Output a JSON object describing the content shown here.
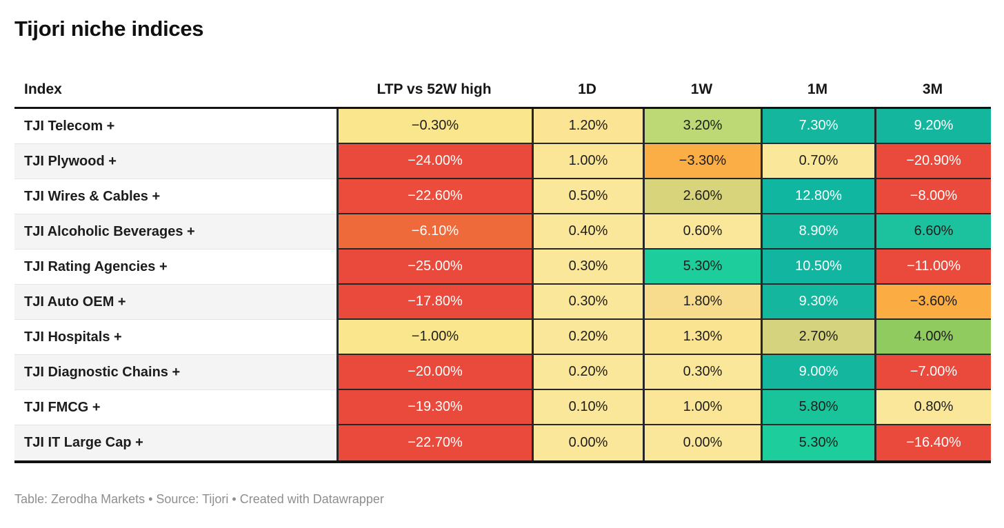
{
  "title": "Tijori niche indices",
  "footer": "Table: Zerodha Markets • Source: Tijori • Created with Datawrapper",
  "table": {
    "columns": [
      "Index",
      "LTP vs 52W high",
      "1D",
      "1W",
      "1M",
      "3M"
    ],
    "rows": [
      {
        "name": "TJI Telecom +",
        "cells": [
          {
            "v": "−0.30%",
            "bg": "#fae68c",
            "fg": "#1d1d1d"
          },
          {
            "v": "1.20%",
            "bg": "#fbe493",
            "fg": "#1d1d1d"
          },
          {
            "v": "3.20%",
            "bg": "#bcd976",
            "fg": "#1d1d1d"
          },
          {
            "v": "7.30%",
            "bg": "#14b79e",
            "fg": "#ffffff"
          },
          {
            "v": "9.20%",
            "bg": "#14b79e",
            "fg": "#ffffff"
          }
        ]
      },
      {
        "name": "TJI Plywood +",
        "cells": [
          {
            "v": "−24.00%",
            "bg": "#ea4a3b",
            "fg": "#ffffff"
          },
          {
            "v": "1.00%",
            "bg": "#fbe697",
            "fg": "#1d1d1d"
          },
          {
            "v": "−3.30%",
            "bg": "#fbae45",
            "fg": "#1d1d1d"
          },
          {
            "v": "0.70%",
            "bg": "#fbe79a",
            "fg": "#1d1d1d"
          },
          {
            "v": "−20.90%",
            "bg": "#ea4a3b",
            "fg": "#ffffff"
          }
        ]
      },
      {
        "name": "TJI Wires & Cables +",
        "cells": [
          {
            "v": "−22.60%",
            "bg": "#eb4c3b",
            "fg": "#ffffff"
          },
          {
            "v": "0.50%",
            "bg": "#fbe79a",
            "fg": "#1d1d1d"
          },
          {
            "v": "2.60%",
            "bg": "#d8d47c",
            "fg": "#1d1d1d"
          },
          {
            "v": "12.80%",
            "bg": "#11b6a1",
            "fg": "#ffffff"
          },
          {
            "v": "−8.00%",
            "bg": "#ea4a3b",
            "fg": "#ffffff"
          }
        ]
      },
      {
        "name": "TJI Alcoholic Beverages +",
        "cells": [
          {
            "v": "−6.10%",
            "bg": "#ef6a3b",
            "fg": "#ffffff"
          },
          {
            "v": "0.40%",
            "bg": "#fbe79a",
            "fg": "#1d1d1d"
          },
          {
            "v": "0.60%",
            "bg": "#fbe79a",
            "fg": "#1d1d1d"
          },
          {
            "v": "8.90%",
            "bg": "#14b79e",
            "fg": "#ffffff"
          },
          {
            "v": "6.60%",
            "bg": "#1cc29d",
            "fg": "#1d1d1d"
          }
        ]
      },
      {
        "name": "TJI Rating Agencies +",
        "cells": [
          {
            "v": "−25.00%",
            "bg": "#ea4a3b",
            "fg": "#ffffff"
          },
          {
            "v": "0.30%",
            "bg": "#fbe79a",
            "fg": "#1d1d1d"
          },
          {
            "v": "5.30%",
            "bg": "#1ecd9c",
            "fg": "#1d1d1d"
          },
          {
            "v": "10.50%",
            "bg": "#12b6a0",
            "fg": "#ffffff"
          },
          {
            "v": "−11.00%",
            "bg": "#ea4a3b",
            "fg": "#ffffff"
          }
        ]
      },
      {
        "name": "TJI Auto OEM +",
        "cells": [
          {
            "v": "−17.80%",
            "bg": "#ea4a3b",
            "fg": "#ffffff"
          },
          {
            "v": "0.30%",
            "bg": "#fbe79a",
            "fg": "#1d1d1d"
          },
          {
            "v": "1.80%",
            "bg": "#f8dc8d",
            "fg": "#1d1d1d"
          },
          {
            "v": "9.30%",
            "bg": "#14b79e",
            "fg": "#ffffff"
          },
          {
            "v": "−3.60%",
            "bg": "#fbad44",
            "fg": "#1d1d1d"
          }
        ]
      },
      {
        "name": "TJI Hospitals +",
        "cells": [
          {
            "v": "−1.00%",
            "bg": "#fae68c",
            "fg": "#1d1d1d"
          },
          {
            "v": "0.20%",
            "bg": "#fbe79a",
            "fg": "#1d1d1d"
          },
          {
            "v": "1.30%",
            "bg": "#fae391",
            "fg": "#1d1d1d"
          },
          {
            "v": "2.70%",
            "bg": "#d5d37d",
            "fg": "#1d1d1d"
          },
          {
            "v": "4.00%",
            "bg": "#8fcb5f",
            "fg": "#1d1d1d"
          }
        ]
      },
      {
        "name": "TJI Diagnostic Chains +",
        "cells": [
          {
            "v": "−20.00%",
            "bg": "#ea4a3b",
            "fg": "#ffffff"
          },
          {
            "v": "0.20%",
            "bg": "#fbe79a",
            "fg": "#1d1d1d"
          },
          {
            "v": "0.30%",
            "bg": "#fbe79a",
            "fg": "#1d1d1d"
          },
          {
            "v": "9.00%",
            "bg": "#14b79e",
            "fg": "#ffffff"
          },
          {
            "v": "−7.00%",
            "bg": "#ea4a3b",
            "fg": "#ffffff"
          }
        ]
      },
      {
        "name": "TJI FMCG +",
        "cells": [
          {
            "v": "−19.30%",
            "bg": "#ea4a3b",
            "fg": "#ffffff"
          },
          {
            "v": "0.10%",
            "bg": "#fbe79a",
            "fg": "#1d1d1d"
          },
          {
            "v": "1.00%",
            "bg": "#fbe697",
            "fg": "#1d1d1d"
          },
          {
            "v": "5.80%",
            "bg": "#19c49b",
            "fg": "#1d1d1d"
          },
          {
            "v": "0.80%",
            "bg": "#fbe79a",
            "fg": "#1d1d1d"
          }
        ]
      },
      {
        "name": "TJI IT Large Cap +",
        "cells": [
          {
            "v": "−22.70%",
            "bg": "#ea4a3b",
            "fg": "#ffffff"
          },
          {
            "v": "0.00%",
            "bg": "#fbe79a",
            "fg": "#1d1d1d"
          },
          {
            "v": "0.00%",
            "bg": "#fbe79a",
            "fg": "#1d1d1d"
          },
          {
            "v": "5.30%",
            "bg": "#1ecd9c",
            "fg": "#1d1d1d"
          },
          {
            "v": "−16.40%",
            "bg": "#ea4a3b",
            "fg": "#ffffff"
          }
        ]
      }
    ]
  },
  "chart_data": {
    "type": "table",
    "title": "Tijori niche indices",
    "columns": [
      "Index",
      "LTP vs 52W high",
      "1D",
      "1W",
      "1M",
      "3M"
    ],
    "unit": "%",
    "heatmap": true,
    "rows": [
      {
        "index": "TJI Telecom +",
        "values": [
          -0.3,
          1.2,
          3.2,
          7.3,
          9.2
        ]
      },
      {
        "index": "TJI Plywood +",
        "values": [
          -24.0,
          1.0,
          -3.3,
          0.7,
          -20.9
        ]
      },
      {
        "index": "TJI Wires & Cables +",
        "values": [
          -22.6,
          0.5,
          2.6,
          12.8,
          -8.0
        ]
      },
      {
        "index": "TJI Alcoholic Beverages +",
        "values": [
          -6.1,
          0.4,
          0.6,
          8.9,
          6.6
        ]
      },
      {
        "index": "TJI Rating Agencies +",
        "values": [
          -25.0,
          0.3,
          5.3,
          10.5,
          -11.0
        ]
      },
      {
        "index": "TJI Auto OEM +",
        "values": [
          -17.8,
          0.3,
          1.8,
          9.3,
          -3.6
        ]
      },
      {
        "index": "TJI Hospitals +",
        "values": [
          -1.0,
          0.2,
          1.3,
          2.7,
          4.0
        ]
      },
      {
        "index": "TJI Diagnostic Chains +",
        "values": [
          -20.0,
          0.2,
          0.3,
          9.0,
          -7.0
        ]
      },
      {
        "index": "TJI FMCG +",
        "values": [
          -19.3,
          0.1,
          1.0,
          5.8,
          0.8
        ]
      },
      {
        "index": "TJI IT Large Cap +",
        "values": [
          -22.7,
          0.0,
          0.0,
          5.3,
          -16.4
        ]
      }
    ],
    "notes": "Table: Zerodha Markets • Source: Tijori • Created with Datawrapper",
    "color_scale": {
      "negative_strong": "#ea4a3b",
      "negative_mid": "#ef6a3b",
      "negative_soft": "#fbae45",
      "neutral": "#fbe79a",
      "positive_soft": "#bcd976",
      "positive_mid": "#1ecd9c",
      "positive_strong": "#14b79e"
    }
  }
}
